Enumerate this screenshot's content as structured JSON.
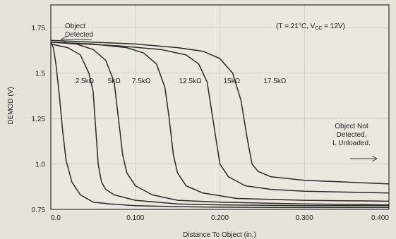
{
  "chart_data": {
    "type": "line",
    "xlabel": "Distance To Object (in.)",
    "ylabel": "DEMOD (V)",
    "xlim": [
      0,
      0.4
    ],
    "ylim": [
      0.75,
      1.875
    ],
    "x_ticks": [
      "0.0",
      "0.100",
      "0.200",
      "0.300",
      "0.400"
    ],
    "x_tick_values": [
      0,
      0.1,
      0.2,
      0.3,
      0.4
    ],
    "y_ticks": [
      "0.75",
      "1.0",
      "1.25",
      "1.5",
      "1.75"
    ],
    "y_tick_values": [
      0.75,
      1.0,
      1.25,
      1.5,
      1.75
    ],
    "grid": "on",
    "annotations": {
      "detected": "Object\nDetected",
      "conditions": "(T = 21°C, VCC = 12V)",
      "not_detected": "Object Not\nDetected,\nL Unloaded."
    },
    "series": [
      {
        "name": "2.5kΩ",
        "x": [
          0,
          0.003,
          0.006,
          0.01,
          0.014,
          0.018,
          0.025,
          0.035,
          0.05,
          0.07,
          0.1,
          0.15,
          0.2,
          0.3,
          0.4
        ],
        "y": [
          1.67,
          1.64,
          1.55,
          1.38,
          1.18,
          1.02,
          0.9,
          0.83,
          0.79,
          0.78,
          0.77,
          0.765,
          0.762,
          0.76,
          0.76
        ]
      },
      {
        "name": "5kΩ",
        "x": [
          0,
          0.02,
          0.035,
          0.045,
          0.05,
          0.053,
          0.056,
          0.06,
          0.065,
          0.075,
          0.1,
          0.15,
          0.2,
          0.3,
          0.4
        ],
        "y": [
          1.66,
          1.64,
          1.6,
          1.5,
          1.4,
          1.2,
          1.0,
          0.9,
          0.86,
          0.83,
          0.8,
          0.78,
          0.775,
          0.77,
          0.77
        ]
      },
      {
        "name": "7.5kΩ",
        "x": [
          0,
          0.03,
          0.05,
          0.065,
          0.075,
          0.08,
          0.085,
          0.09,
          0.1,
          0.12,
          0.15,
          0.2,
          0.3,
          0.4
        ],
        "y": [
          1.67,
          1.66,
          1.63,
          1.57,
          1.45,
          1.25,
          1.05,
          0.95,
          0.88,
          0.83,
          0.8,
          0.79,
          0.78,
          0.775
        ]
      },
      {
        "name": "12.5kΩ",
        "x": [
          0,
          0.05,
          0.09,
          0.11,
          0.125,
          0.135,
          0.14,
          0.145,
          0.15,
          0.16,
          0.18,
          0.22,
          0.3,
          0.4
        ],
        "y": [
          1.67,
          1.66,
          1.64,
          1.61,
          1.55,
          1.42,
          1.25,
          1.05,
          0.95,
          0.88,
          0.84,
          0.81,
          0.8,
          0.795
        ]
      },
      {
        "name": "15kΩ",
        "x": [
          0,
          0.08,
          0.13,
          0.16,
          0.175,
          0.185,
          0.19,
          0.195,
          0.2,
          0.21,
          0.23,
          0.26,
          0.3,
          0.35,
          0.4
        ],
        "y": [
          1.67,
          1.65,
          1.63,
          1.6,
          1.55,
          1.45,
          1.3,
          1.15,
          1.0,
          0.93,
          0.88,
          0.86,
          0.85,
          0.845,
          0.84
        ]
      },
      {
        "name": "17.5kΩ",
        "x": [
          0,
          0.1,
          0.15,
          0.18,
          0.2,
          0.215,
          0.225,
          0.232,
          0.238,
          0.245,
          0.26,
          0.3,
          0.35,
          0.4
        ],
        "y": [
          1.68,
          1.66,
          1.64,
          1.62,
          1.58,
          1.5,
          1.35,
          1.15,
          1.0,
          0.96,
          0.93,
          0.91,
          0.9,
          0.89
        ]
      }
    ]
  },
  "colors": {
    "curve": "#2b2b2b",
    "grid": "#c9c5bb",
    "frame": "#333333"
  }
}
